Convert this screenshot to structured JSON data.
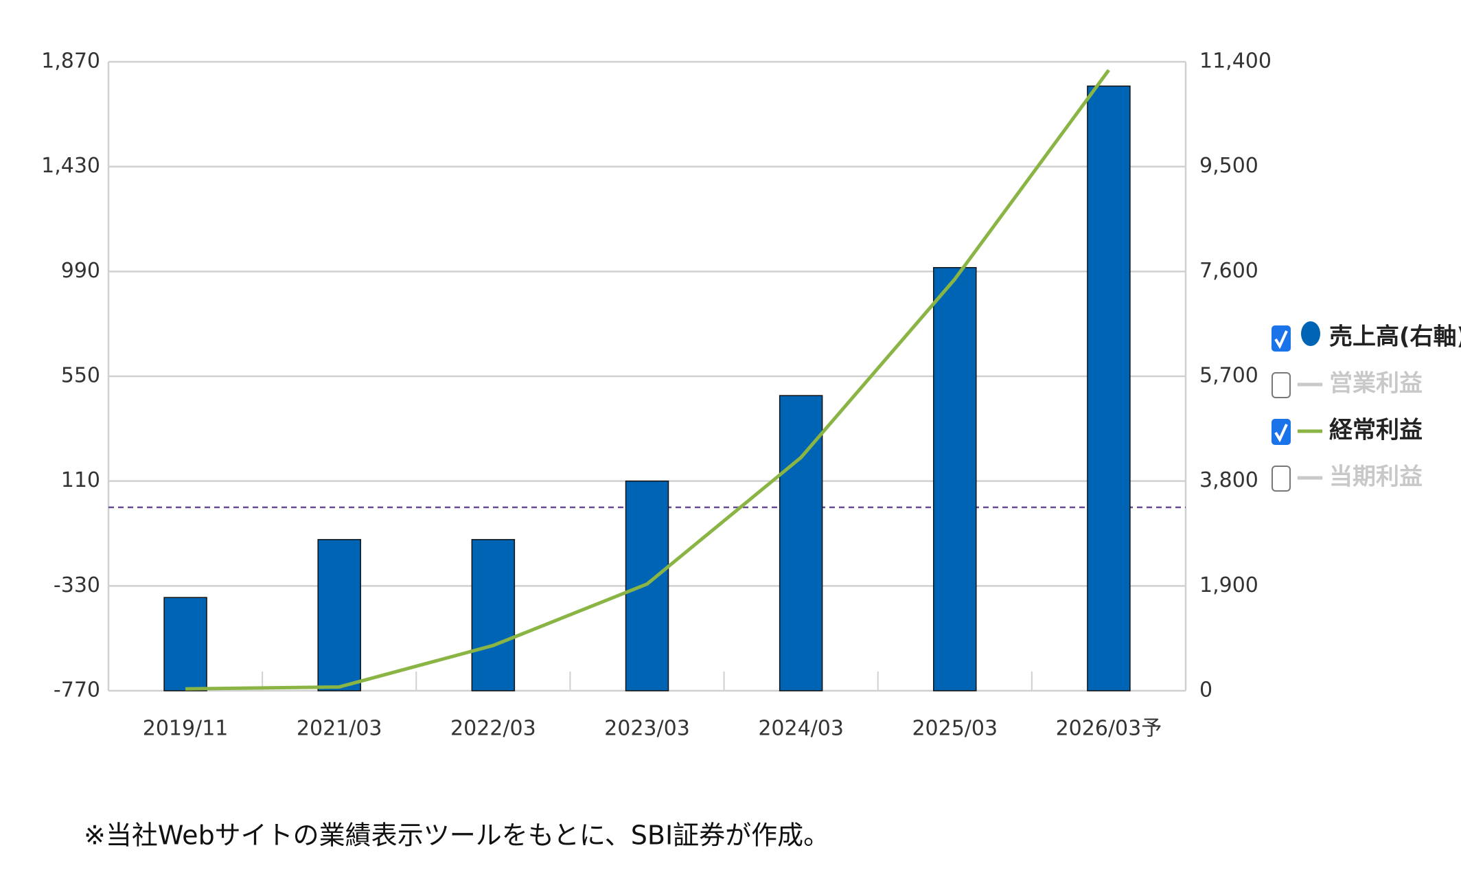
{
  "chart_data": {
    "type": "bar_line",
    "categories": [
      "2019/11",
      "2021/03",
      "2022/03",
      "2023/03",
      "2024/03",
      "2025/03",
      "2026/03予"
    ],
    "series": [
      {
        "name": "売上高(右軸)",
        "type": "bar",
        "axis": "y2",
        "color": "#0064b4",
        "visible": true,
        "values": [
          1690,
          2740,
          2740,
          3800,
          5350,
          7670,
          10960
        ]
      },
      {
        "name": "営業利益",
        "type": "line",
        "color": "#c8c8c8",
        "visible": false
      },
      {
        "name": "経常利益",
        "type": "line",
        "axis": "y",
        "color": "#8ab545",
        "visible": true,
        "values": [
          -762,
          -754,
          -580,
          -322,
          209,
          958,
          1835
        ]
      },
      {
        "name": "当期利益",
        "type": "line",
        "color": "#c8c8c8",
        "visible": false
      }
    ],
    "ylim": [
      -770,
      1870
    ],
    "yticks": [
      -770,
      -330,
      110,
      550,
      990,
      {
        "value": 1430,
        "label": "1,430"
      },
      {
        "value": 1870,
        "label": "1,870"
      }
    ],
    "y2lim": [
      0,
      11400
    ],
    "y2ticks": [
      0,
      {
        "value": 1900,
        "label": "1,900"
      },
      {
        "value": 3800,
        "label": "3,800"
      },
      {
        "value": 5700,
        "label": "5,700"
      },
      {
        "value": 7600,
        "label": "7,600"
      },
      {
        "value": 9500,
        "label": "9,500"
      },
      {
        "value": 11400,
        "label": "11,400"
      }
    ],
    "grid": true,
    "zero_line": true,
    "legend": "right",
    "note": "※当社Webサイトの業績表示ツールをもとに、SBI証券が作成。"
  }
}
